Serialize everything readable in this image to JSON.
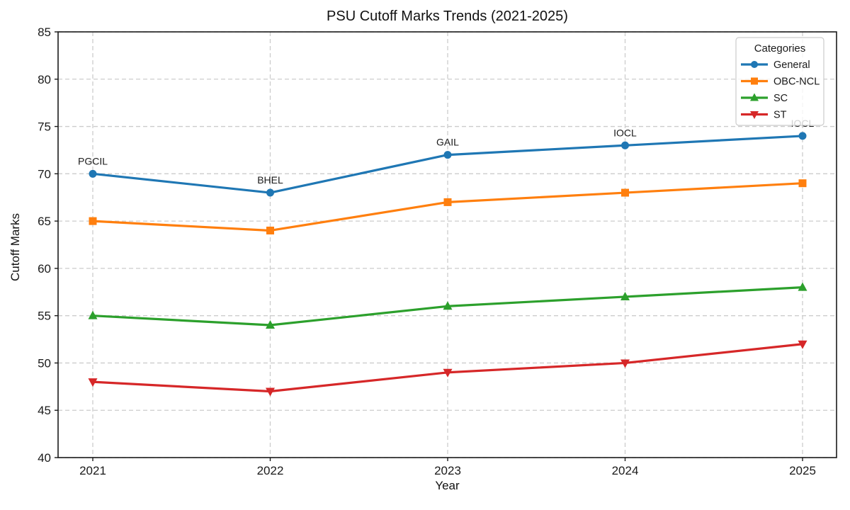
{
  "chart_data": {
    "type": "line",
    "title": "PSU Cutoff Marks Trends (2021-2025)",
    "xlabel": "Year",
    "ylabel": "Cutoff Marks",
    "x": [
      2021,
      2022,
      2023,
      2024,
      2025
    ],
    "ylim": [
      40,
      85
    ],
    "yticks": [
      40,
      45,
      50,
      55,
      60,
      65,
      70,
      75,
      80,
      85
    ],
    "grid": true,
    "legend": {
      "title": "Categories",
      "position": "upper-right"
    },
    "series": [
      {
        "name": "General",
        "color": "#1f77b4",
        "marker": "circle",
        "values": [
          70,
          68,
          72,
          73,
          74
        ]
      },
      {
        "name": "OBC-NCL",
        "color": "#ff7f0e",
        "marker": "square",
        "values": [
          65,
          64,
          67,
          68,
          69
        ]
      },
      {
        "name": "SC",
        "color": "#2ca02c",
        "marker": "triangle-up",
        "values": [
          55,
          54,
          56,
          57,
          58
        ]
      },
      {
        "name": "ST",
        "color": "#d62728",
        "marker": "triangle-down",
        "values": [
          48,
          47,
          49,
          50,
          52
        ]
      }
    ],
    "annotations": [
      {
        "text": "PGCIL",
        "x": 2021,
        "y": 70
      },
      {
        "text": "BHEL",
        "x": 2022,
        "y": 68
      },
      {
        "text": "GAIL",
        "x": 2023,
        "y": 72
      },
      {
        "text": "IOCL",
        "x": 2024,
        "y": 73
      },
      {
        "text": "IOCL",
        "x": 2025,
        "y": 74
      }
    ],
    "style": {
      "grid_color": "#cccccc",
      "spine_color": "#1a1a1a",
      "legend_border_color": "#cccccc",
      "legend_bg": "#ffffff"
    }
  }
}
